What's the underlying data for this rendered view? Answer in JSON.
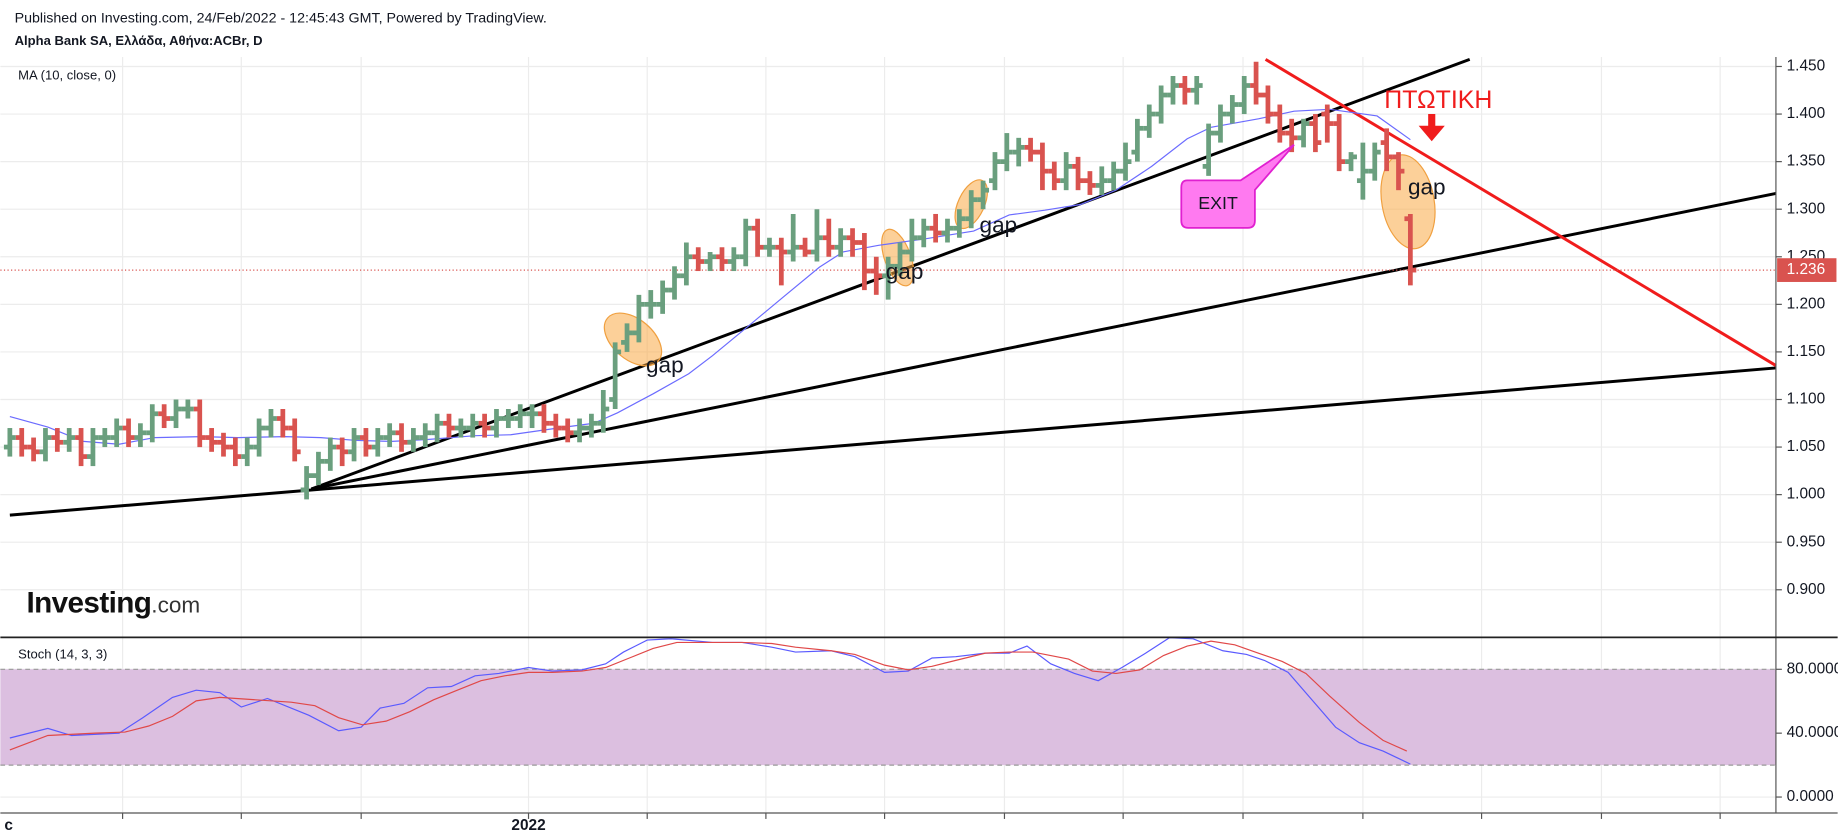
{
  "header": {
    "published": "Published on Investing.com, 24/Feb/2022 - 12:45:43 GMT, Powered by TradingView.",
    "symbol": "Alpha Bank SA, Ελλάδα, Αθήνα:ACBr, D",
    "logo": "Investing",
    "logo_suffix": ".com"
  },
  "chart_data": [
    {
      "type": "ohlc",
      "indicator": "MA (10, close, 0)",
      "xlim": [
        -0.8,
        148.8
      ],
      "ylim": [
        0.85,
        1.46
      ],
      "yticks": [
        {
          "value": 0.9,
          "label": "0.900"
        },
        {
          "value": 0.95,
          "label": "0.950"
        },
        {
          "value": 1.0,
          "label": "1.000"
        },
        {
          "value": 1.05,
          "label": "1.050"
        },
        {
          "value": 1.1,
          "label": "1.100"
        },
        {
          "value": 1.15,
          "label": "1.150"
        },
        {
          "value": 1.2,
          "label": "1.200"
        },
        {
          "value": 1.25,
          "label": "1.250"
        },
        {
          "value": 1.3,
          "label": "1.300"
        },
        {
          "value": 1.35,
          "label": "1.350"
        },
        {
          "value": 1.4,
          "label": "1.400"
        },
        {
          "value": 1.45,
          "label": "1.450"
        }
      ],
      "grid": true,
      "up_color": "#6a9f7e",
      "down_color": "#d9534f",
      "ohlc": [
        [
          1.05,
          1.07,
          1.04,
          1.06
        ],
        [
          1.06,
          1.07,
          1.04,
          1.05
        ],
        [
          1.05,
          1.06,
          1.035,
          1.045
        ],
        [
          1.045,
          1.07,
          1.035,
          1.06
        ],
        [
          1.06,
          1.07,
          1.045,
          1.055
        ],
        [
          1.055,
          1.07,
          1.045,
          1.06
        ],
        [
          1.06,
          1.07,
          1.03,
          1.04
        ],
        [
          1.04,
          1.07,
          1.03,
          1.06
        ],
        [
          1.06,
          1.07,
          1.05,
          1.06
        ],
        [
          1.06,
          1.08,
          1.05,
          1.07
        ],
        [
          1.07,
          1.08,
          1.05,
          1.06
        ],
        [
          1.06,
          1.075,
          1.05,
          1.065
        ],
        [
          1.065,
          1.095,
          1.055,
          1.085
        ],
        [
          1.085,
          1.095,
          1.07,
          1.08
        ],
        [
          1.08,
          1.1,
          1.07,
          1.09
        ],
        [
          1.09,
          1.1,
          1.08,
          1.09
        ],
        [
          1.09,
          1.1,
          1.05,
          1.06
        ],
        [
          1.06,
          1.07,
          1.045,
          1.055
        ],
        [
          1.055,
          1.065,
          1.04,
          1.05
        ],
        [
          1.05,
          1.06,
          1.03,
          1.04
        ],
        [
          1.04,
          1.06,
          1.03,
          1.05
        ],
        [
          1.05,
          1.08,
          1.04,
          1.07
        ],
        [
          1.07,
          1.09,
          1.06,
          1.08
        ],
        [
          1.08,
          1.09,
          1.06,
          1.07
        ],
        [
          1.07,
          1.08,
          1.035,
          1.045
        ],
        [
          1.005,
          1.03,
          0.995,
          1.02
        ],
        [
          1.02,
          1.045,
          1.01,
          1.035
        ],
        [
          1.035,
          1.06,
          1.025,
          1.05
        ],
        [
          1.05,
          1.06,
          1.03,
          1.045
        ],
        [
          1.045,
          1.07,
          1.035,
          1.06
        ],
        [
          1.06,
          1.07,
          1.04,
          1.05
        ],
        [
          1.05,
          1.07,
          1.04,
          1.06
        ],
        [
          1.06,
          1.075,
          1.05,
          1.065
        ],
        [
          1.065,
          1.075,
          1.045,
          1.055
        ],
        [
          1.055,
          1.07,
          1.045,
          1.06
        ],
        [
          1.06,
          1.075,
          1.05,
          1.065
        ],
        [
          1.065,
          1.085,
          1.055,
          1.075
        ],
        [
          1.075,
          1.085,
          1.06,
          1.07
        ],
        [
          1.07,
          1.08,
          1.06,
          1.07
        ],
        [
          1.07,
          1.085,
          1.06,
          1.075
        ],
        [
          1.075,
          1.085,
          1.06,
          1.07
        ],
        [
          1.07,
          1.09,
          1.06,
          1.08
        ],
        [
          1.08,
          1.09,
          1.07,
          1.08
        ],
        [
          1.08,
          1.095,
          1.07,
          1.085
        ],
        [
          1.085,
          1.095,
          1.07,
          1.085
        ],
        [
          1.085,
          1.095,
          1.065,
          1.075
        ],
        [
          1.075,
          1.085,
          1.06,
          1.07
        ],
        [
          1.07,
          1.08,
          1.055,
          1.065
        ],
        [
          1.065,
          1.08,
          1.055,
          1.07
        ],
        [
          1.07,
          1.085,
          1.06,
          1.075
        ],
        [
          1.075,
          1.11,
          1.065,
          1.09
        ],
        [
          1.1,
          1.16,
          1.09,
          1.15
        ],
        [
          1.16,
          1.18,
          1.15,
          1.17
        ],
        [
          1.17,
          1.21,
          1.16,
          1.2
        ],
        [
          1.2,
          1.215,
          1.185,
          1.2
        ],
        [
          1.2,
          1.225,
          1.19,
          1.215
        ],
        [
          1.215,
          1.24,
          1.205,
          1.23
        ],
        [
          1.23,
          1.265,
          1.22,
          1.25
        ],
        [
          1.25,
          1.26,
          1.235,
          1.245
        ],
        [
          1.245,
          1.255,
          1.235,
          1.25
        ],
        [
          1.25,
          1.26,
          1.235,
          1.245
        ],
        [
          1.245,
          1.26,
          1.235,
          1.25
        ],
        [
          1.25,
          1.29,
          1.24,
          1.28
        ],
        [
          1.28,
          1.29,
          1.25,
          1.26
        ],
        [
          1.26,
          1.27,
          1.25,
          1.26
        ],
        [
          1.26,
          1.27,
          1.22,
          1.255
        ],
        [
          1.255,
          1.295,
          1.245,
          1.26
        ],
        [
          1.26,
          1.27,
          1.25,
          1.255
        ],
        [
          1.255,
          1.3,
          1.245,
          1.27
        ],
        [
          1.27,
          1.29,
          1.25,
          1.26
        ],
        [
          1.26,
          1.28,
          1.25,
          1.27
        ],
        [
          1.27,
          1.28,
          1.25,
          1.265
        ],
        [
          1.265,
          1.275,
          1.215,
          1.235
        ],
        [
          1.235,
          1.25,
          1.21,
          1.23
        ],
        [
          1.23,
          1.25,
          1.205,
          1.24
        ],
        [
          1.24,
          1.265,
          1.23,
          1.255
        ],
        [
          1.255,
          1.29,
          1.245,
          1.27
        ],
        [
          1.27,
          1.29,
          1.26,
          1.28
        ],
        [
          1.28,
          1.295,
          1.265,
          1.275
        ],
        [
          1.275,
          1.29,
          1.265,
          1.28
        ],
        [
          1.28,
          1.3,
          1.27,
          1.29
        ],
        [
          1.29,
          1.32,
          1.28,
          1.31
        ],
        [
          1.31,
          1.33,
          1.3,
          1.32
        ],
        [
          1.33,
          1.36,
          1.32,
          1.35
        ],
        [
          1.35,
          1.38,
          1.34,
          1.36
        ],
        [
          1.36,
          1.375,
          1.345,
          1.365
        ],
        [
          1.365,
          1.375,
          1.35,
          1.36
        ],
        [
          1.36,
          1.37,
          1.32,
          1.34
        ],
        [
          1.34,
          1.35,
          1.32,
          1.33
        ],
        [
          1.33,
          1.36,
          1.32,
          1.345
        ],
        [
          1.345,
          1.355,
          1.32,
          1.33
        ],
        [
          1.33,
          1.34,
          1.315,
          1.325
        ],
        [
          1.325,
          1.345,
          1.315,
          1.33
        ],
        [
          1.33,
          1.35,
          1.32,
          1.34
        ],
        [
          1.34,
          1.37,
          1.33,
          1.35
        ],
        [
          1.36,
          1.395,
          1.35,
          1.385
        ],
        [
          1.385,
          1.41,
          1.375,
          1.4
        ],
        [
          1.4,
          1.43,
          1.39,
          1.42
        ],
        [
          1.42,
          1.44,
          1.41,
          1.43
        ],
        [
          1.43,
          1.44,
          1.41,
          1.425
        ],
        [
          1.425,
          1.44,
          1.41,
          1.43
        ],
        [
          1.345,
          1.39,
          1.335,
          1.38
        ],
        [
          1.38,
          1.41,
          1.37,
          1.4
        ],
        [
          1.4,
          1.42,
          1.39,
          1.41
        ],
        [
          1.41,
          1.44,
          1.4,
          1.43
        ],
        [
          1.43,
          1.455,
          1.41,
          1.42
        ],
        [
          1.42,
          1.43,
          1.39,
          1.4
        ],
        [
          1.4,
          1.41,
          1.37,
          1.38
        ],
        [
          1.38,
          1.395,
          1.36,
          1.375
        ],
        [
          1.375,
          1.395,
          1.365,
          1.39
        ],
        [
          1.39,
          1.4,
          1.36,
          1.37
        ],
        [
          1.4,
          1.41,
          1.37,
          1.39
        ],
        [
          1.39,
          1.4,
          1.34,
          1.35
        ],
        [
          1.35,
          1.36,
          1.34,
          1.355
        ],
        [
          1.33,
          1.37,
          1.31,
          1.34
        ],
        [
          1.34,
          1.37,
          1.33,
          1.36
        ],
        [
          1.37,
          1.385,
          1.34,
          1.355
        ],
        [
          1.355,
          1.36,
          1.32,
          1.34
        ],
        [
          1.29,
          1.295,
          1.22,
          1.236
        ]
      ],
      "ma": {
        "color": "#6b6bff",
        "x": [
          0,
          3.2,
          6.2,
          9.2,
          12.2,
          16.2,
          19.2,
          23.2,
          26.2,
          29.2,
          32.2,
          35.2,
          39.2,
          42.2,
          46.2,
          49.2,
          51.2,
          54.2,
          57.2,
          59.2,
          62.2,
          65.2,
          68.2,
          70.2,
          73.2,
          77.2,
          81.2,
          84.2,
          87.2,
          90.2,
          93.2,
          96.2,
          99.2,
          101.2,
          105.2,
          108.2,
          111.2,
          115.2,
          118.0
        ],
        "values": [
          1.082,
          1.071,
          1.056,
          1.053,
          1.06,
          1.061,
          1.06,
          1.061,
          1.06,
          1.057,
          1.056,
          1.058,
          1.062,
          1.063,
          1.07,
          1.075,
          1.086,
          1.106,
          1.127,
          1.146,
          1.177,
          1.208,
          1.239,
          1.255,
          1.262,
          1.269,
          1.277,
          1.294,
          1.299,
          1.305,
          1.32,
          1.345,
          1.374,
          1.386,
          1.395,
          1.403,
          1.405,
          1.398,
          1.373
        ]
      },
      "last_price": {
        "value": 1.236,
        "label": "1.236",
        "color": "#d9534f"
      },
      "annotations": [
        "gap",
        "gap",
        "gap",
        "gap",
        "EXIT",
        "ΠΤΩΤΙΚΗ"
      ]
    },
    {
      "type": "line",
      "title": "Stoch (14, 3, 3)",
      "xlim": [
        -0.8,
        148.8
      ],
      "ylim": [
        -10,
        100
      ],
      "yticks": [
        {
          "value": 0,
          "label": "0.0000"
        },
        {
          "value": 40,
          "label": "40.0000"
        },
        {
          "value": 80,
          "label": "80.0000"
        }
      ],
      "band": [
        20,
        80
      ],
      "band_color": "#dcbfe0",
      "xticks": [
        9.5,
        19.5,
        29.6,
        43.7,
        53.7,
        63.7,
        73.7,
        83.8,
        93.8,
        103.9,
        114,
        124,
        134.1,
        144.1
      ],
      "xlabels": [
        {
          "value": -0.2,
          "label": "c"
        },
        {
          "value": 43.7,
          "label": "2022"
        }
      ],
      "series": [
        {
          "color": "#5a5aff",
          "x": [
            0,
            3.2,
            5.2,
            9.2,
            11.2,
            13.7,
            15.7,
            17.7,
            19.5,
            21.7,
            25.2,
            27.7,
            29.6,
            31.2,
            33.2,
            35.2,
            37.2,
            39.2,
            41.2,
            43.7,
            45.7,
            48.2,
            50.2,
            51.7,
            53.7,
            55.7,
            59.2,
            61.7,
            64.2,
            66.2,
            69.2,
            71.2,
            73.7,
            75.7,
            77.7,
            79.7,
            82.2,
            84.2,
            85.7,
            87.7,
            89.7,
            91.7,
            93.7,
            95.7,
            97.7,
            99.7,
            102.2,
            104.2,
            105.7,
            107.7,
            109.7,
            111.7,
            113.7,
            115.7,
            118.0
          ],
          "values": [
            37.0,
            43.0,
            38.5,
            40.0,
            49.7,
            62.4,
            66.9,
            65.4,
            56.4,
            61.7,
            51.2,
            41.5,
            43.7,
            55.7,
            58.7,
            68.4,
            69.2,
            75.9,
            77.4,
            81.1,
            78.9,
            79.6,
            83.4,
            90.8,
            98.3,
            99.1,
            96.8,
            96.8,
            93.8,
            90.8,
            91.6,
            87.9,
            78.1,
            78.9,
            87.1,
            87.9,
            90.1,
            90.1,
            94.6,
            83.4,
            77.4,
            72.9,
            81.1,
            90.1,
            99.8,
            99.1,
            91.6,
            89.3,
            85.6,
            78.1,
            60.9,
            43.7,
            34.0,
            28.8,
            20.6
          ]
        },
        {
          "color": "#e04848",
          "x": [
            0,
            3.2,
            7.2,
            9.7,
            11.7,
            13.7,
            15.7,
            17.7,
            20.7,
            23.7,
            25.7,
            27.7,
            29.7,
            31.7,
            33.7,
            35.7,
            37.7,
            39.7,
            41.7,
            43.7,
            45.7,
            48.2,
            50.2,
            52.2,
            54.2,
            56.2,
            59.2,
            61.7,
            64.2,
            66.2,
            69.2,
            71.2,
            73.7,
            75.7,
            77.7,
            79.7,
            82.2,
            84.2,
            86.2,
            89.2,
            91.2,
            93.2,
            95.2,
            97.2,
            99.2,
            101.2,
            103.2,
            105.2,
            107.2,
            109.2,
            111.2,
            113.7,
            115.7,
            117.7
          ],
          "values": [
            29.5,
            38.5,
            40.0,
            40.7,
            44.5,
            50.5,
            60.2,
            62.4,
            60.9,
            59.4,
            57.2,
            49.7,
            45.2,
            47.5,
            53.5,
            60.9,
            66.9,
            72.9,
            75.9,
            78.1,
            78.1,
            78.9,
            81.1,
            87.1,
            93.1,
            96.8,
            96.8,
            96.8,
            96.1,
            93.8,
            91.6,
            89.3,
            82.6,
            79.6,
            81.9,
            85.6,
            90.1,
            90.8,
            90.8,
            86.4,
            78.9,
            77.4,
            79.6,
            88.6,
            94.6,
            97.6,
            95.3,
            90.1,
            84.9,
            77.4,
            63.2,
            46.7,
            35.5,
            28.8
          ]
        }
      ]
    }
  ]
}
